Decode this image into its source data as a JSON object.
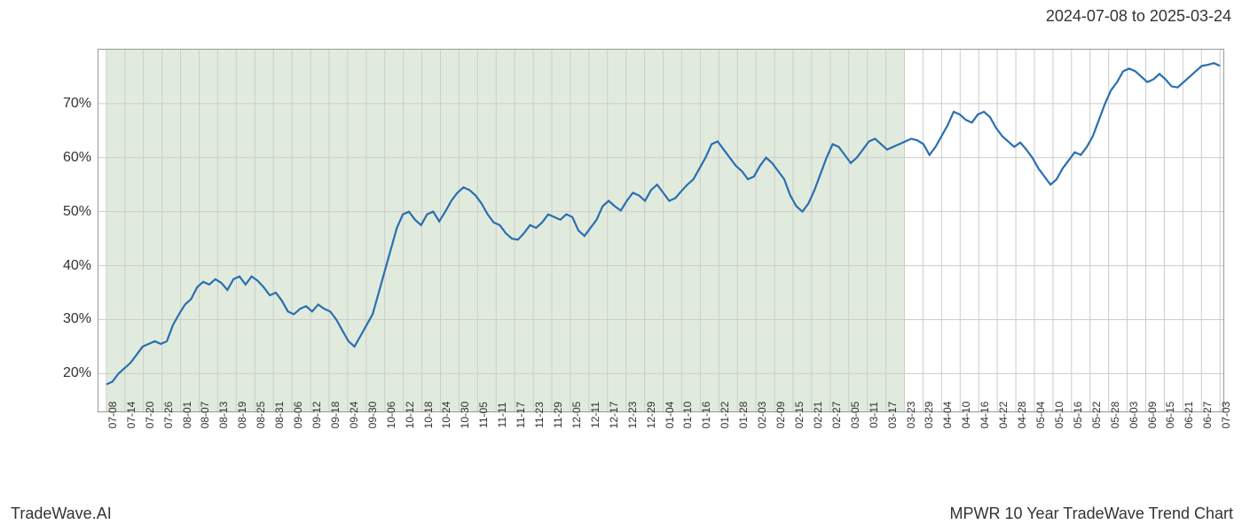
{
  "header": {
    "date_range": "2024-07-08 to 2025-03-24"
  },
  "footer": {
    "brand": "TradeWave.AI",
    "title": "MPWR 10 Year TradeWave Trend Chart"
  },
  "chart": {
    "type": "line",
    "background_color": "#ffffff",
    "grid_color": "#cccccc",
    "border_color": "#999999",
    "line_color": "#2a6fb0",
    "line_width": 2.2,
    "shaded_region": {
      "color": "#dce8d7",
      "opacity": 0.85,
      "x_start_index": 0,
      "x_end_index": 43
    },
    "y_axis": {
      "min": 13,
      "max": 80,
      "ticks": [
        20,
        30,
        40,
        50,
        60,
        70
      ],
      "tick_suffix": "%",
      "label_fontsize": 16,
      "label_color": "#333333"
    },
    "x_axis": {
      "labels": [
        "07-08",
        "07-14",
        "07-20",
        "07-26",
        "08-01",
        "08-07",
        "08-13",
        "08-19",
        "08-25",
        "08-31",
        "09-06",
        "09-12",
        "09-18",
        "09-24",
        "09-30",
        "10-06",
        "10-12",
        "10-18",
        "10-24",
        "10-30",
        "11-05",
        "11-11",
        "11-17",
        "11-23",
        "11-29",
        "12-05",
        "12-11",
        "12-17",
        "12-23",
        "12-29",
        "01-04",
        "01-10",
        "01-16",
        "01-22",
        "01-28",
        "02-03",
        "02-09",
        "02-15",
        "02-21",
        "02-27",
        "03-05",
        "03-11",
        "03-17",
        "03-23",
        "03-29",
        "04-04",
        "04-10",
        "04-16",
        "04-22",
        "04-28",
        "05-04",
        "05-10",
        "05-16",
        "05-22",
        "05-28",
        "06-03",
        "06-09",
        "06-15",
        "06-21",
        "06-27",
        "07-03"
      ],
      "label_fontsize": 12,
      "label_color": "#333333",
      "label_rotation": -90
    },
    "series": {
      "values": [
        18,
        18.5,
        20,
        21,
        22,
        23.5,
        25,
        25.5,
        26,
        25.5,
        26,
        29,
        31,
        32.8,
        33.8,
        36,
        37,
        36.5,
        37.5,
        36.8,
        35.5,
        37.5,
        38,
        36.5,
        38,
        37.2,
        36,
        34.5,
        35,
        33.5,
        31.5,
        31,
        32,
        32.5,
        31.5,
        32.8,
        32,
        31.5,
        30,
        28,
        26,
        25,
        27,
        29,
        31,
        35,
        39,
        43,
        47,
        49.5,
        50,
        48.5,
        47.5,
        49.5,
        50,
        48.2,
        50,
        52,
        53.5,
        54.5,
        54,
        53,
        51.5,
        49.5,
        48,
        47.5,
        46,
        45,
        44.8,
        46,
        47.5,
        47,
        48,
        49.5,
        49,
        48.5,
        49.5,
        49,
        46.5,
        45.5,
        47,
        48.5,
        51,
        52,
        51,
        50.2,
        52,
        53.5,
        53,
        52,
        54,
        55,
        53.5,
        52,
        52.5,
        53.8,
        55,
        56,
        58,
        60,
        62.5,
        63,
        61.5,
        60,
        58.5,
        57.5,
        56,
        56.5,
        58.5,
        60,
        59,
        57.5,
        56,
        53,
        51,
        50,
        51.5,
        54,
        57,
        60,
        62.5,
        62,
        60.5,
        59,
        60,
        61.5,
        63,
        63.5,
        62.5,
        61.5,
        62,
        62.5,
        63,
        63.5,
        63.2,
        62.5,
        60.5,
        62,
        64,
        66,
        68.5,
        68,
        67,
        66.5,
        68,
        68.5,
        67.5,
        65.5,
        64,
        63,
        62,
        62.8,
        61.5,
        60,
        58,
        56.5,
        55,
        56,
        58,
        59.5,
        61,
        60.5,
        62,
        64,
        67,
        70,
        72.5,
        74,
        76,
        76.5,
        76,
        75,
        74,
        74.5,
        75.5,
        74.5,
        73.2,
        73,
        74,
        75,
        76,
        77,
        77.2,
        77.5,
        77
      ]
    }
  }
}
